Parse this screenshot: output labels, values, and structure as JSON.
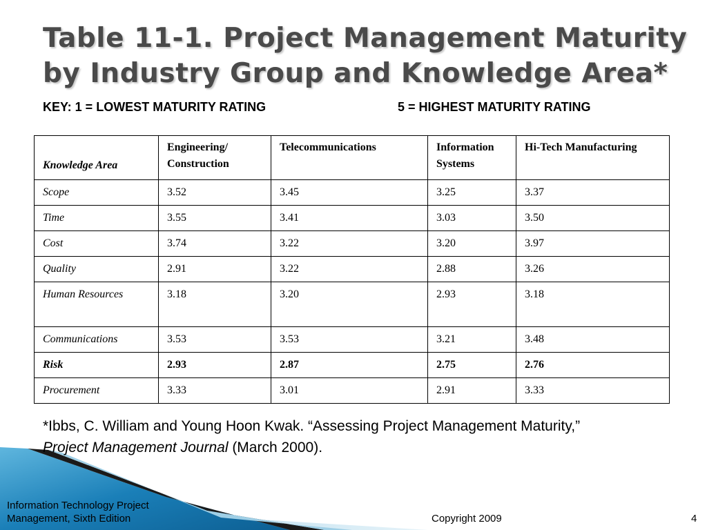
{
  "slide": {
    "title": "Table 11-1. Project Management Maturity by Industry Group and Knowledge Area*",
    "key_low": "KEY: 1 = LOWEST MATURITY RATING",
    "key_high": "5 = HIGHEST MATURITY RATING"
  },
  "table": {
    "headers": [
      "Knowledge Area",
      "Engineering/ Construction",
      "Telecommunications",
      "Information Systems",
      "Hi-Tech Manufacturing"
    ],
    "rows": [
      {
        "area": "Scope",
        "values": [
          "3.52",
          "3.45",
          "3.25",
          "3.37"
        ]
      },
      {
        "area": "Time",
        "values": [
          "3.55",
          "3.41",
          "3.03",
          "3.50"
        ]
      },
      {
        "area": "Cost",
        "values": [
          "3.74",
          "3.22",
          "3.20",
          "3.97"
        ]
      },
      {
        "area": "Quality",
        "values": [
          "2.91",
          "3.22",
          "2.88",
          "3.26"
        ]
      },
      {
        "area": "Human Resources",
        "values": [
          "3.18",
          "3.20",
          "2.93",
          "3.18"
        ]
      },
      {
        "area": "Communications",
        "values": [
          "3.53",
          "3.53",
          "3.21",
          "3.48"
        ]
      },
      {
        "area": "Risk",
        "values": [
          "2.93",
          "2.87",
          "2.75",
          "2.76"
        ],
        "bold": true
      },
      {
        "area": "Procurement",
        "values": [
          "3.33",
          "3.01",
          "2.91",
          "3.33"
        ]
      }
    ]
  },
  "footnote": {
    "text_start": "*Ibbs, C. William and Young Hoon Kwak. “Assessing Project Management Maturity,”",
    "journal": "Project Management Journal",
    "text_end": " (March 2000)."
  },
  "footer": {
    "book": "Information Technology Project Management, Sixth Edition",
    "copyright": "Copyright 2009",
    "page": "4"
  },
  "colors": {
    "title": "#4a4a4a",
    "swoosh_blue": "#1a7fb8",
    "swoosh_light": "#bfe0ef",
    "swoosh_dark": "#1a1a1a"
  }
}
